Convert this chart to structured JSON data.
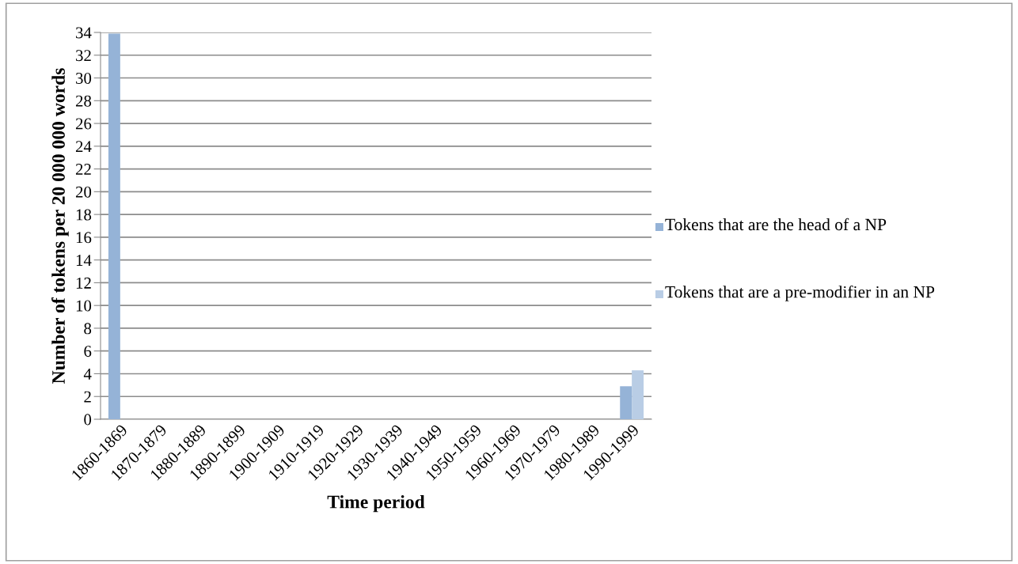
{
  "chart_data": {
    "type": "bar",
    "xlabel": "Time period",
    "ylabel": "Number of tokens per 20 000 000 words",
    "categories": [
      "1860-1869",
      "1870-1879",
      "1880-1889",
      "1890-1899",
      "1900-1909",
      "1910-1919",
      "1920-1929",
      "1930-1939",
      "1940-1949",
      "1950-1959",
      "1960-1969",
      "1970-1979",
      "1980-1989",
      "1990-1999"
    ],
    "series": [
      {
        "name": "Tokens that are the head of a NP",
        "color": "#95b3d7",
        "values": [
          33.9,
          0,
          0,
          0,
          0,
          0,
          0,
          0,
          0,
          0,
          0,
          0,
          0,
          2.9
        ]
      },
      {
        "name": "Tokens that are a pre-modifier in an NP",
        "color": "#b9cde5",
        "values": [
          0,
          0,
          0,
          0,
          0,
          0,
          0,
          0,
          0,
          0,
          0,
          0,
          0,
          4.3
        ]
      }
    ],
    "ylim": [
      0,
      34
    ],
    "yticks": [
      0,
      2,
      4,
      6,
      8,
      10,
      12,
      14,
      16,
      18,
      20,
      22,
      24,
      26,
      28,
      30,
      32,
      34
    ],
    "grid": "y",
    "legend": "right"
  }
}
